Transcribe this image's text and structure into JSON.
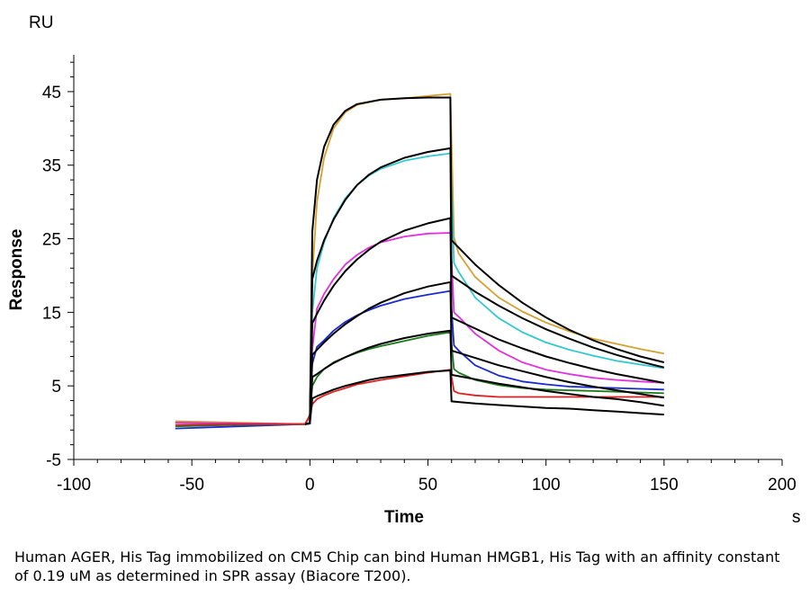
{
  "caption": "Human AGER, His Tag immobilized on CM5 Chip can bind Human HMGB1, His Tag with an affinity constant of 0.19 uM as determined in SPR assay (Biacore T200).",
  "chart_data": {
    "type": "line",
    "title": "",
    "y_unit": "RU",
    "x_unit": "s",
    "xlabel": "Time",
    "ylabel": "Response",
    "xlim": [
      -100,
      200
    ],
    "ylim": [
      -5,
      50
    ],
    "x_ticks": [
      -100,
      -50,
      0,
      50,
      100,
      150,
      200
    ],
    "x_tick_labels": [
      "-100",
      "-50",
      "0",
      "50",
      "100",
      "150",
      "200"
    ],
    "y_ticks": [
      -5,
      5,
      15,
      25,
      35,
      45
    ],
    "y_tick_labels": [
      "-5",
      "5",
      "15",
      "25",
      "35",
      "45"
    ],
    "grid": false,
    "legend": "none",
    "series": [
      {
        "color": "#d4a030",
        "values": [
          [
            -57,
            0.2
          ],
          [
            -30,
            0.0
          ],
          [
            -2,
            -0.2
          ],
          [
            0,
            1
          ],
          [
            1,
            20
          ],
          [
            3,
            30
          ],
          [
            6,
            36
          ],
          [
            10,
            40
          ],
          [
            15,
            42.2
          ],
          [
            20,
            43.2
          ],
          [
            30,
            43.9
          ],
          [
            40,
            44.1
          ],
          [
            50,
            44.4
          ],
          [
            59.5,
            44.7
          ],
          [
            61,
            25.2
          ],
          [
            63,
            23
          ],
          [
            70,
            19.8
          ],
          [
            80,
            17
          ],
          [
            90,
            15.1
          ],
          [
            100,
            13.6
          ],
          [
            110,
            12.4
          ],
          [
            120,
            11.4
          ],
          [
            130,
            10.7
          ],
          [
            140,
            10
          ],
          [
            150,
            9.4
          ]
        ]
      },
      {
        "color": "#30c8d0",
        "values": [
          [
            -57,
            0.0
          ],
          [
            -30,
            -0.1
          ],
          [
            -2,
            -0.2
          ],
          [
            0,
            1
          ],
          [
            1,
            15
          ],
          [
            3,
            21
          ],
          [
            6,
            24.5
          ],
          [
            10,
            27.8
          ],
          [
            15,
            30.5
          ],
          [
            20,
            32.3
          ],
          [
            25,
            33.6
          ],
          [
            30,
            34.5
          ],
          [
            40,
            35.6
          ],
          [
            50,
            36.2
          ],
          [
            59.5,
            36.6
          ],
          [
            61,
            21.7
          ],
          [
            63,
            20.5
          ],
          [
            70,
            17
          ],
          [
            80,
            14.2
          ],
          [
            90,
            12.3
          ],
          [
            100,
            10.9
          ],
          [
            110,
            9.9
          ],
          [
            120,
            9.1
          ],
          [
            130,
            8.4
          ],
          [
            140,
            7.9
          ],
          [
            150,
            7.4
          ]
        ]
      },
      {
        "color": "#e030e0",
        "values": [
          [
            -57,
            0.0
          ],
          [
            -30,
            -0.1
          ],
          [
            -2,
            -0.2
          ],
          [
            0,
            1
          ],
          [
            1,
            10
          ],
          [
            3,
            15.5
          ],
          [
            6,
            17.5
          ],
          [
            10,
            19.5
          ],
          [
            15,
            21.5
          ],
          [
            20,
            22.8
          ],
          [
            25,
            23.8
          ],
          [
            30,
            24.5
          ],
          [
            40,
            25.3
          ],
          [
            50,
            25.7
          ],
          [
            59.5,
            25.8
          ],
          [
            61,
            15
          ],
          [
            63,
            14.4
          ],
          [
            70,
            12.1
          ],
          [
            80,
            9.8
          ],
          [
            90,
            8.2
          ],
          [
            100,
            7.2
          ],
          [
            110,
            6.6
          ],
          [
            120,
            6.1
          ],
          [
            130,
            5.8
          ],
          [
            140,
            5.6
          ],
          [
            150,
            5.4
          ]
        ]
      },
      {
        "color": "#1a2ad0",
        "values": [
          [
            -57,
            -0.8
          ],
          [
            -30,
            -0.5
          ],
          [
            -2,
            -0.2
          ],
          [
            0,
            1
          ],
          [
            1,
            8
          ],
          [
            3,
            10.3
          ],
          [
            6,
            11.2
          ],
          [
            10,
            12.5
          ],
          [
            15,
            13.7
          ],
          [
            20,
            14.6
          ],
          [
            25,
            15.3
          ],
          [
            30,
            15.9
          ],
          [
            40,
            16.8
          ],
          [
            50,
            17.4
          ],
          [
            59.5,
            17.9
          ],
          [
            61,
            10.5
          ],
          [
            63,
            9.8
          ],
          [
            70,
            7.8
          ],
          [
            80,
            6.4
          ],
          [
            90,
            5.6
          ],
          [
            100,
            5.2
          ],
          [
            110,
            4.9
          ],
          [
            120,
            4.8
          ],
          [
            130,
            4.7
          ],
          [
            140,
            4.6
          ],
          [
            150,
            4.5
          ]
        ]
      },
      {
        "color": "#1a7a1a",
        "values": [
          [
            -57,
            -0.5
          ],
          [
            -30,
            -0.3
          ],
          [
            -2,
            -0.2
          ],
          [
            0,
            1
          ],
          [
            1,
            5
          ],
          [
            3,
            6.2
          ],
          [
            6,
            7.3
          ],
          [
            10,
            8.2
          ],
          [
            15,
            8.9
          ],
          [
            20,
            9.5
          ],
          [
            25,
            10
          ],
          [
            30,
            10.4
          ],
          [
            40,
            11.1
          ],
          [
            50,
            11.8
          ],
          [
            59.5,
            12.3
          ],
          [
            61,
            7.3
          ],
          [
            63,
            6.8
          ],
          [
            70,
            5.8
          ],
          [
            80,
            5.1
          ],
          [
            90,
            4.7
          ],
          [
            100,
            4.5
          ],
          [
            110,
            4.4
          ],
          [
            120,
            4.3
          ],
          [
            130,
            4.2
          ],
          [
            140,
            4.1
          ],
          [
            150,
            4.0
          ]
        ]
      },
      {
        "color": "#e02020",
        "values": [
          [
            -57,
            -0.3
          ],
          [
            -30,
            -0.2
          ],
          [
            -2,
            -0.2
          ],
          [
            0,
            1
          ],
          [
            1,
            2.5
          ],
          [
            3,
            3.2
          ],
          [
            6,
            3.7
          ],
          [
            10,
            4.2
          ],
          [
            15,
            4.7
          ],
          [
            20,
            5.2
          ],
          [
            25,
            5.5
          ],
          [
            30,
            5.8
          ],
          [
            40,
            6.3
          ],
          [
            50,
            6.8
          ],
          [
            59.5,
            7.2
          ],
          [
            61,
            4.3
          ],
          [
            63,
            4.0
          ],
          [
            70,
            3.7
          ],
          [
            80,
            3.5
          ],
          [
            90,
            3.5
          ],
          [
            100,
            3.5
          ],
          [
            110,
            3.5
          ],
          [
            120,
            3.5
          ],
          [
            130,
            3.5
          ],
          [
            140,
            3.5
          ],
          [
            150,
            3.5
          ]
        ]
      },
      {
        "color": "#000000",
        "values": [
          [
            -2,
            -0.2
          ],
          [
            0,
            -0.1
          ],
          [
            1,
            26
          ],
          [
            3,
            33
          ],
          [
            6,
            37.5
          ],
          [
            10,
            40.5
          ],
          [
            15,
            42.4
          ],
          [
            20,
            43.3
          ],
          [
            30,
            43.9
          ],
          [
            40,
            44.1
          ],
          [
            50,
            44.2
          ],
          [
            59.5,
            44.2
          ],
          [
            60,
            24.8
          ],
          [
            70,
            21.5
          ],
          [
            80,
            18.7
          ],
          [
            90,
            16.3
          ],
          [
            100,
            14.3
          ],
          [
            110,
            12.6
          ],
          [
            120,
            11.2
          ],
          [
            130,
            10
          ],
          [
            140,
            9
          ],
          [
            150,
            8.2
          ]
        ]
      },
      {
        "color": "#000000",
        "values": [
          [
            -2,
            -0.2
          ],
          [
            0,
            -0.1
          ],
          [
            1,
            19.5
          ],
          [
            3,
            22
          ],
          [
            6,
            24.8
          ],
          [
            10,
            27.6
          ],
          [
            15,
            30.3
          ],
          [
            20,
            32.3
          ],
          [
            25,
            33.7
          ],
          [
            30,
            34.7
          ],
          [
            40,
            36
          ],
          [
            50,
            36.8
          ],
          [
            59.5,
            37.3
          ],
          [
            60,
            20
          ],
          [
            70,
            17.8
          ],
          [
            80,
            15.9
          ],
          [
            90,
            14.2
          ],
          [
            100,
            12.7
          ],
          [
            110,
            11.4
          ],
          [
            120,
            10.2
          ],
          [
            130,
            9.2
          ],
          [
            140,
            8.3
          ],
          [
            150,
            7.5
          ]
        ]
      },
      {
        "color": "#000000",
        "values": [
          [
            -2,
            -0.2
          ],
          [
            0,
            -0.1
          ],
          [
            1,
            13.5
          ],
          [
            3,
            14.8
          ],
          [
            6,
            16.6
          ],
          [
            10,
            18.6
          ],
          [
            15,
            20.6
          ],
          [
            20,
            22.2
          ],
          [
            25,
            23.5
          ],
          [
            30,
            24.6
          ],
          [
            40,
            26.1
          ],
          [
            50,
            27.1
          ],
          [
            59.5,
            27.8
          ],
          [
            60,
            14.3
          ],
          [
            70,
            12.8
          ],
          [
            80,
            11.3
          ],
          [
            90,
            10.1
          ],
          [
            100,
            9
          ],
          [
            110,
            8.1
          ],
          [
            120,
            7.3
          ],
          [
            130,
            6.6
          ],
          [
            140,
            6
          ],
          [
            150,
            5.4
          ]
        ]
      },
      {
        "color": "#000000",
        "values": [
          [
            -2,
            -0.2
          ],
          [
            0,
            -0.1
          ],
          [
            1,
            9.2
          ],
          [
            3,
            9.9
          ],
          [
            6,
            10.9
          ],
          [
            10,
            12.1
          ],
          [
            15,
            13.4
          ],
          [
            20,
            14.5
          ],
          [
            25,
            15.5
          ],
          [
            30,
            16.3
          ],
          [
            40,
            17.6
          ],
          [
            50,
            18.5
          ],
          [
            59.5,
            19.1
          ],
          [
            60,
            9.8
          ],
          [
            70,
            8.8
          ],
          [
            80,
            7.8
          ],
          [
            90,
            7
          ],
          [
            100,
            6.2
          ],
          [
            110,
            5.5
          ],
          [
            120,
            4.9
          ],
          [
            130,
            4.4
          ],
          [
            140,
            3.9
          ],
          [
            150,
            3.4
          ]
        ]
      },
      {
        "color": "#000000",
        "values": [
          [
            -2,
            -0.2
          ],
          [
            0,
            -0.1
          ],
          [
            1,
            6.2
          ],
          [
            3,
            6.6
          ],
          [
            6,
            7.3
          ],
          [
            10,
            8.1
          ],
          [
            15,
            8.9
          ],
          [
            20,
            9.6
          ],
          [
            25,
            10.2
          ],
          [
            30,
            10.7
          ],
          [
            40,
            11.5
          ],
          [
            50,
            12.1
          ],
          [
            59.5,
            12.5
          ],
          [
            60,
            6.5
          ],
          [
            70,
            5.9
          ],
          [
            80,
            5.3
          ],
          [
            90,
            4.8
          ],
          [
            100,
            4.3
          ],
          [
            110,
            3.9
          ],
          [
            120,
            3.5
          ],
          [
            130,
            3.2
          ],
          [
            140,
            2.8
          ],
          [
            150,
            2.3
          ]
        ]
      },
      {
        "color": "#000000",
        "values": [
          [
            -2,
            -0.2
          ],
          [
            0,
            -0.1
          ],
          [
            1,
            3.3
          ],
          [
            3,
            3.6
          ],
          [
            6,
            4
          ],
          [
            10,
            4.5
          ],
          [
            15,
            5
          ],
          [
            20,
            5.4
          ],
          [
            25,
            5.8
          ],
          [
            30,
            6.1
          ],
          [
            40,
            6.5
          ],
          [
            50,
            6.9
          ],
          [
            59.5,
            7.1
          ],
          [
            60,
            2.9
          ],
          [
            70,
            2.6
          ],
          [
            80,
            2.4
          ],
          [
            90,
            2.2
          ],
          [
            100,
            2
          ],
          [
            110,
            1.9
          ],
          [
            120,
            1.7
          ],
          [
            130,
            1.5
          ],
          [
            140,
            1.3
          ],
          [
            150,
            1.1
          ]
        ]
      }
    ]
  }
}
